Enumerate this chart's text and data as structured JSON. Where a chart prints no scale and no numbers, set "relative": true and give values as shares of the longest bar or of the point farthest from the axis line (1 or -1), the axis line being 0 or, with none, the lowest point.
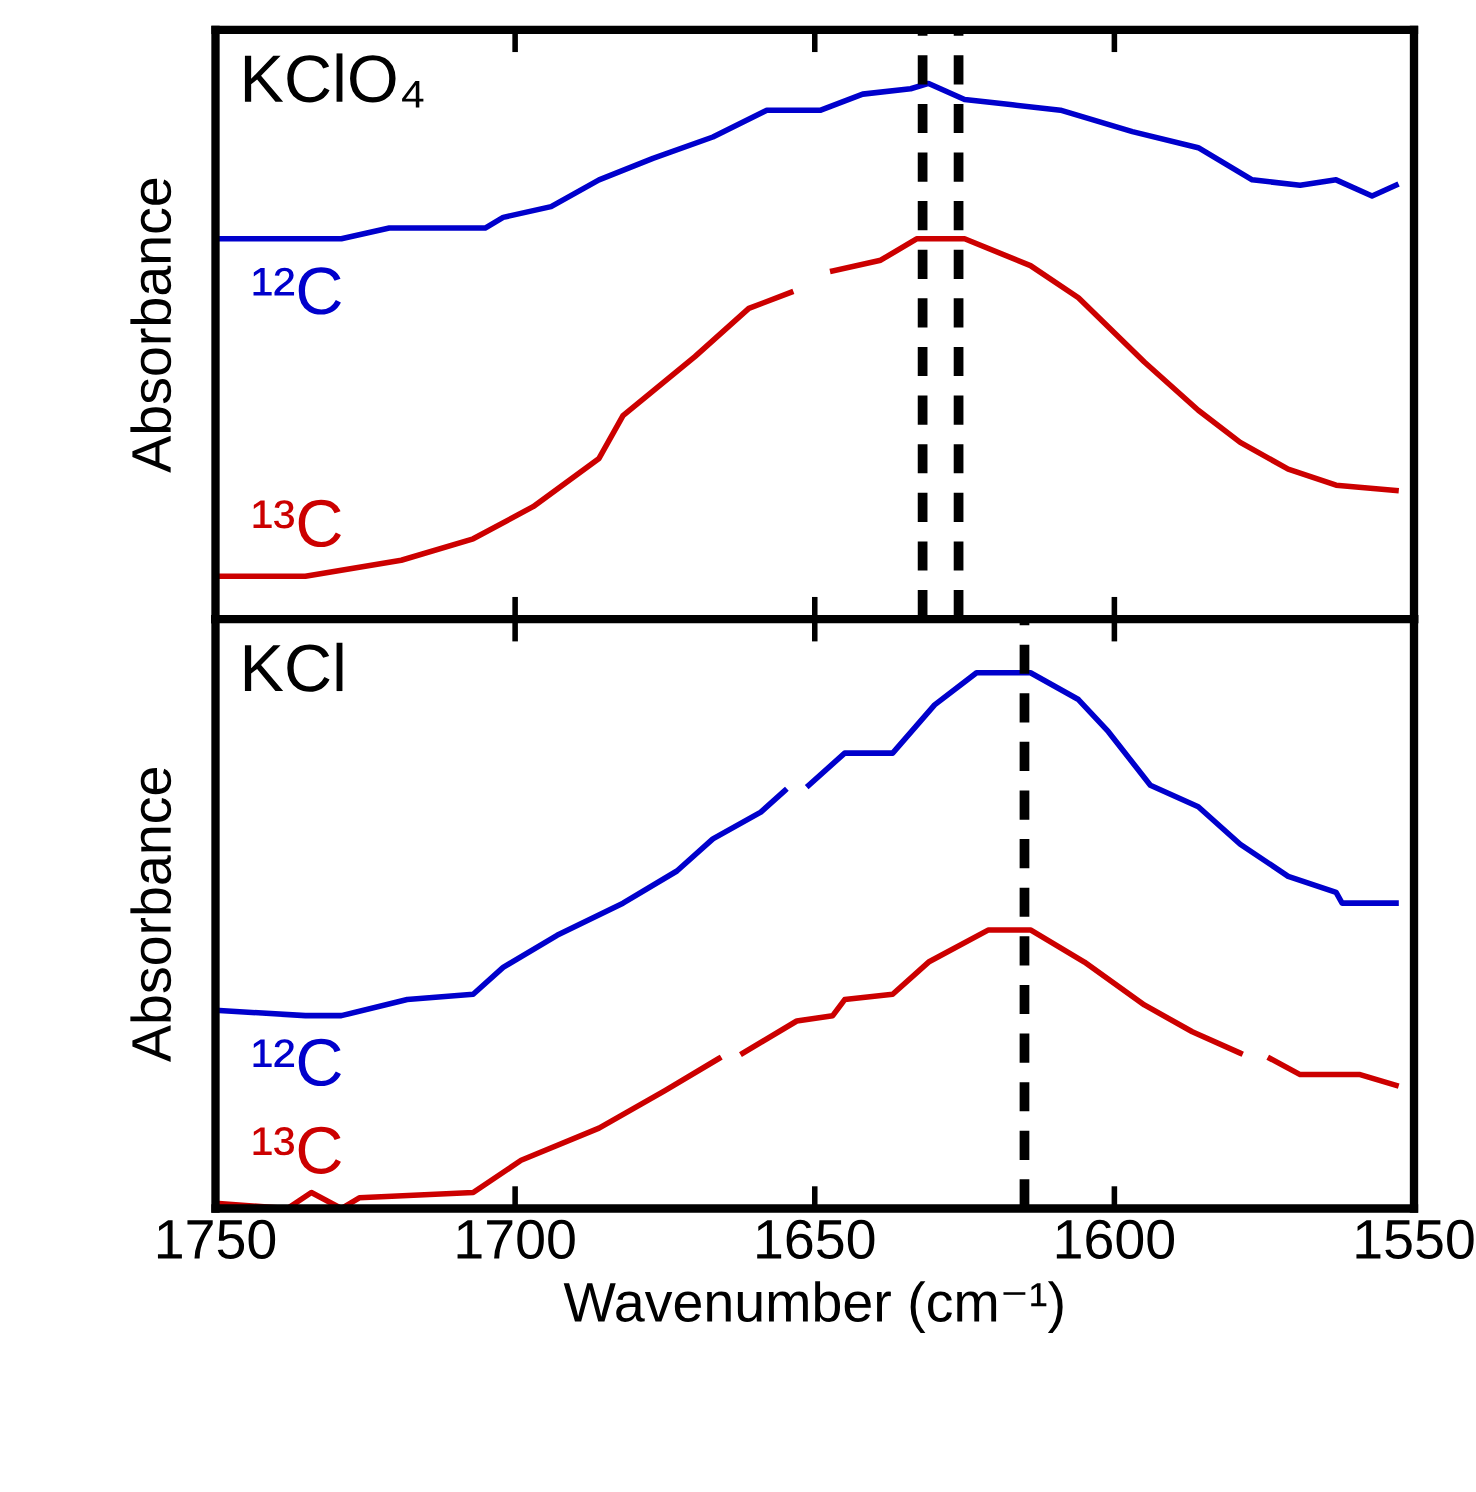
{
  "chart_data": [
    {
      "type": "line",
      "relative": true,
      "ylabel": "Absorbance",
      "annotations": [
        "KClO₄"
      ],
      "tick_labels": false,
      "legend": false,
      "xlim": [
        1750,
        1550
      ],
      "xticks": [
        1750,
        1700,
        1650,
        1600,
        1550
      ],
      "ref_lines": [
        {
          "axis": "x",
          "value": 1632,
          "color": "#000000",
          "line_style": "dashed"
        },
        {
          "axis": "x",
          "value": 1626,
          "color": "#000000",
          "line_style": "dashed"
        }
      ],
      "series": [
        {
          "name": "¹²C",
          "color": "#0000cc",
          "x": [
            1750,
            1742,
            1729,
            1721,
            1705,
            1702,
            1694,
            1686,
            1677,
            1667,
            1658,
            1649,
            1642,
            1634,
            1631,
            1625,
            1617,
            1609,
            1597,
            1586,
            1577,
            1569,
            1563,
            1557,
            1553
          ],
          "values": [
            0.71,
            0.71,
            0.71,
            0.73,
            0.73,
            0.75,
            0.77,
            0.82,
            0.86,
            0.9,
            0.95,
            0.95,
            0.98,
            0.99,
            1.0,
            0.97,
            0.96,
            0.95,
            0.91,
            0.88,
            0.82,
            0.81,
            0.82,
            0.79,
            0.81
          ]
        },
        {
          "name": "¹³C",
          "color": "#cc0000",
          "x": [
            1750,
            1735,
            1719,
            1707,
            1697,
            1686,
            1682,
            1670,
            1661,
            1654,
            1652,
            1647,
            1639,
            1633,
            1625,
            1614,
            1606,
            1595,
            1586,
            1579,
            1571,
            1563,
            1553
          ],
          "values": [
            0.08,
            0.08,
            0.11,
            0.15,
            0.21,
            0.3,
            0.38,
            0.49,
            0.58,
            0.61,
            null,
            0.65,
            0.67,
            0.71,
            0.71,
            0.66,
            0.6,
            0.48,
            0.39,
            0.33,
            0.28,
            0.25,
            0.24
          ]
        }
      ]
    },
    {
      "type": "line",
      "relative": true,
      "ylabel": "Absorbance",
      "xlabel": "Wavenumber (cm⁻¹)",
      "annotations": [
        "KCl"
      ],
      "tick_labels": "x",
      "legend": false,
      "xlim": [
        1750,
        1550
      ],
      "xticks": [
        1750,
        1700,
        1650,
        1600,
        1550
      ],
      "ref_lines": [
        {
          "axis": "x",
          "value": 1615,
          "color": "#000000",
          "line_style": "dashed"
        }
      ],
      "series": [
        {
          "name": "¹²C",
          "color": "#0000cc",
          "x": [
            1750,
            1735,
            1729,
            1718,
            1707,
            1702,
            1693,
            1682,
            1673,
            1667,
            1659,
            1655,
            1653,
            1651,
            1645,
            1637,
            1630,
            1623,
            1614,
            1606,
            1601,
            1594,
            1586,
            1579,
            1571,
            1563,
            1562,
            1553
          ],
          "values": [
            0.37,
            0.36,
            0.36,
            0.39,
            0.4,
            0.45,
            0.51,
            0.57,
            0.63,
            0.69,
            0.74,
            0.78,
            null,
            0.79,
            0.85,
            0.85,
            0.94,
            1.0,
            1.0,
            0.95,
            0.89,
            0.79,
            0.75,
            0.68,
            0.62,
            0.59,
            0.57,
            0.57
          ]
        },
        {
          "name": "¹³C",
          "color": "#cc0000",
          "x": [
            1750,
            1738,
            1734,
            1729,
            1726,
            1707,
            1699,
            1686,
            1675,
            1666,
            1664,
            1662,
            1653,
            1647,
            1645,
            1637,
            1631,
            1621,
            1614,
            1605,
            1595,
            1587,
            1579,
            1576,
            1574,
            1569,
            1559,
            1553
          ],
          "values": [
            0.01,
            0.0,
            0.03,
            0.0,
            0.02,
            0.03,
            0.09,
            0.15,
            0.22,
            0.28,
            null,
            0.29,
            0.35,
            0.36,
            0.39,
            0.4,
            0.46,
            0.52,
            0.52,
            0.46,
            0.38,
            0.33,
            0.29,
            null,
            0.28,
            0.25,
            0.25,
            0.23
          ]
        }
      ]
    }
  ]
}
